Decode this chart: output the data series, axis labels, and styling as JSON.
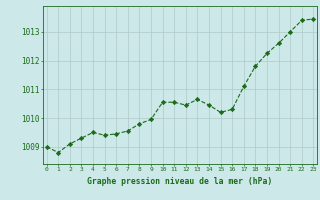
{
  "x": [
    0,
    1,
    2,
    3,
    4,
    5,
    6,
    7,
    8,
    9,
    10,
    11,
    12,
    13,
    14,
    15,
    16,
    17,
    18,
    19,
    20,
    21,
    22,
    23
  ],
  "y": [
    1009.0,
    1008.8,
    1009.1,
    1009.3,
    1009.5,
    1009.4,
    1009.45,
    1009.55,
    1009.8,
    1009.95,
    1010.55,
    1010.55,
    1010.45,
    1010.65,
    1010.45,
    1010.2,
    1010.3,
    1011.1,
    1011.8,
    1012.25,
    1012.6,
    1013.0,
    1013.4,
    1013.45
  ],
  "line_color": "#1a6b1a",
  "marker": "D",
  "marker_size": 2.2,
  "bg_color": "#cce8e8",
  "grid_color": "#b0c8c8",
  "xlabel": "Graphe pression niveau de la mer (hPa)",
  "xlabel_color": "#1a6b1a",
  "tick_color": "#1a6b1a",
  "ylim": [
    1008.4,
    1013.9
  ],
  "yticks": [
    1009,
    1010,
    1011,
    1012,
    1013
  ],
  "xticks": [
    0,
    1,
    2,
    3,
    4,
    5,
    6,
    7,
    8,
    9,
    10,
    11,
    12,
    13,
    14,
    15,
    16,
    17,
    18,
    19,
    20,
    21,
    22,
    23
  ],
  "xlim": [
    -0.3,
    23.3
  ]
}
